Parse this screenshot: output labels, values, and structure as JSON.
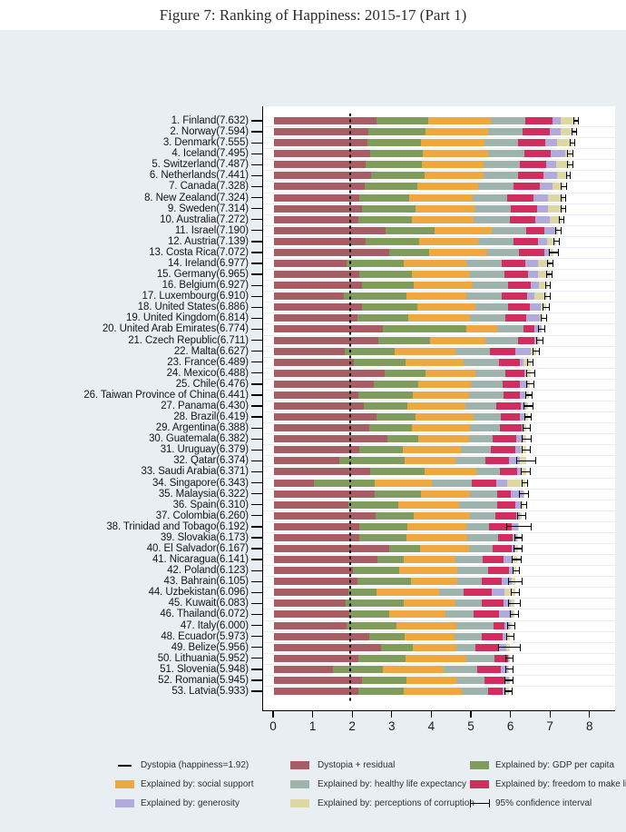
{
  "title": "Figure 7: Ranking of Happiness: 2015-17 (Part 1)",
  "colors": {
    "dystopia_residual": "#a85d65",
    "gdp": "#7f9c5c",
    "social": "#efa73f",
    "health": "#9eb3ab",
    "freedom": "#d22d5f",
    "generosity": "#b0abdc",
    "corruption": "#ddd8a3",
    "background": "#e9eef3",
    "plot_background": "#ffffff",
    "axis": "#000000"
  },
  "chart_data": {
    "type": "bar",
    "orientation": "horizontal-stacked",
    "title": "Figure 7: Ranking of Happiness: 2015-17 (Part 1)",
    "xlabel": "",
    "ylabel": "",
    "xlim": [
      0,
      8
    ],
    "x_tick_labels": [
      "0",
      "1",
      "2",
      "3",
      "4",
      "5",
      "6",
      "7",
      "8"
    ],
    "grid": false,
    "dystopia_line_value": 1.92,
    "segment_order": [
      "dystopia_residual",
      "gdp",
      "social",
      "health",
      "freedom",
      "generosity",
      "corruption"
    ],
    "segment_names": [
      "Dystopia + residual",
      "Explained by: GDP per capita",
      "Explained by: social support",
      "Explained by: healthy life expectancy",
      "Explained by: freedom to make life choices",
      "Explained by: generosity",
      "Explained by: perceptions of corruption"
    ],
    "rows": [
      {
        "rank": 1,
        "country": "Finland",
        "score": 7.632,
        "label": "1. Finland(7.632)",
        "v": [
          2.585,
          1.305,
          1.592,
          0.874,
          0.681,
          0.202,
          0.393
        ],
        "ci": 0.07
      },
      {
        "rank": 2,
        "country": "Norway",
        "score": 7.594,
        "label": "2. Norway(7.594)",
        "v": [
          2.383,
          1.456,
          1.582,
          0.861,
          0.686,
          0.286,
          0.34
        ],
        "ci": 0.07
      },
      {
        "rank": 3,
        "country": "Denmark",
        "score": 7.555,
        "label": "3. Denmark(7.555)",
        "v": [
          2.371,
          1.351,
          1.59,
          0.868,
          0.683,
          0.284,
          0.408
        ],
        "ci": 0.07
      },
      {
        "rank": 4,
        "country": "Iceland",
        "score": 7.495,
        "label": "4. Iceland(7.495)",
        "v": [
          2.426,
          1.343,
          1.644,
          0.914,
          0.677,
          0.353,
          0.138
        ],
        "ci": 0.08
      },
      {
        "rank": 5,
        "country": "Switzerland",
        "score": 7.487,
        "label": "5. Switzerland(7.487)",
        "v": [
          2.318,
          1.42,
          1.549,
          0.927,
          0.66,
          0.256,
          0.357
        ],
        "ci": 0.08
      },
      {
        "rank": 6,
        "country": "Netherlands",
        "score": 7.441,
        "label": "6. Netherlands(7.441)",
        "v": [
          2.448,
          1.361,
          1.488,
          0.878,
          0.638,
          0.333,
          0.295
        ],
        "ci": 0.06
      },
      {
        "rank": 7,
        "country": "Canada",
        "score": 7.328,
        "label": "7. Canada(7.328)",
        "v": [
          2.305,
          1.33,
          1.532,
          0.896,
          0.653,
          0.321,
          0.291
        ],
        "ci": 0.07
      },
      {
        "rank": 8,
        "country": "New Zealand",
        "score": 7.324,
        "label": "8. New Zealand(7.324)",
        "v": [
          2.156,
          1.268,
          1.601,
          0.876,
          0.669,
          0.365,
          0.389
        ],
        "ci": 0.07
      },
      {
        "rank": 9,
        "country": "Sweden",
        "score": 7.314,
        "label": "9. Sweden(7.314)",
        "v": [
          2.218,
          1.355,
          1.501,
          0.913,
          0.659,
          0.285,
          0.383
        ],
        "ci": 0.07
      },
      {
        "rank": 10,
        "country": "Australia",
        "score": 7.272,
        "label": "10. Australia(7.272)",
        "v": [
          2.139,
          1.34,
          1.573,
          0.91,
          0.647,
          0.361,
          0.302
        ],
        "ci": 0.07
      },
      {
        "rank": 11,
        "country": "Israel",
        "score": 7.19,
        "label": "11. Israel(7.190)",
        "v": [
          2.817,
          1.244,
          1.433,
          0.888,
          0.464,
          0.262,
          0.082
        ],
        "ci": 0.07
      },
      {
        "rank": 12,
        "country": "Austria",
        "score": 7.139,
        "label": "12. Austria(7.139)",
        "v": [
          2.32,
          1.341,
          1.504,
          0.891,
          0.617,
          0.242,
          0.224
        ],
        "ci": 0.08
      },
      {
        "rank": 13,
        "country": "Costa Rica",
        "score": 7.072,
        "label": "13. Costa Rica(7.072)",
        "v": [
          2.91,
          1.01,
          1.459,
          0.817,
          0.632,
          0.143,
          0.101
        ],
        "ci": 0.12
      },
      {
        "rank": 14,
        "country": "Ireland",
        "score": 6.977,
        "label": "14. Ireland(6.977)",
        "v": [
          1.843,
          1.448,
          1.583,
          0.876,
          0.614,
          0.307,
          0.306
        ],
        "ci": 0.08
      },
      {
        "rank": 15,
        "country": "Germany",
        "score": 6.965,
        "label": "15. Germany(6.965)",
        "v": [
          2.151,
          1.34,
          1.474,
          0.861,
          0.586,
          0.273,
          0.28
        ],
        "ci": 0.08
      },
      {
        "rank": 16,
        "country": "Belgium",
        "score": 6.927,
        "label": "16. Belgium(6.927)",
        "v": [
          2.215,
          1.324,
          1.483,
          0.894,
          0.583,
          0.188,
          0.24
        ],
        "ci": 0.07
      },
      {
        "rank": 17,
        "country": "Luxembourg",
        "score": 6.91,
        "label": "17. Luxembourg(6.910)",
        "v": [
          1.769,
          1.576,
          1.52,
          0.896,
          0.632,
          0.196,
          0.321
        ],
        "ci": 0.08
      },
      {
        "rank": 18,
        "country": "United States",
        "score": 6.886,
        "label": "18. United States(6.886)",
        "v": [
          2.227,
          1.398,
          1.471,
          0.819,
          0.547,
          0.291,
          0.133
        ],
        "ci": 0.09
      },
      {
        "rank": 19,
        "country": "United Kingdom",
        "score": 6.814,
        "label": "19. United Kingdom(6.814)",
        "v": [
          2.102,
          1.301,
          1.559,
          0.883,
          0.533,
          0.354,
          0.082
        ],
        "ci": 0.08
      },
      {
        "rank": 20,
        "country": "United Arab Emirates",
        "score": 6.774,
        "label": "20. United Arab Emirates(6.774)",
        "v": [
          2.762,
          2.096,
          0.776,
          0.67,
          0.284,
          0.186,
          0.0
        ],
        "ci": 0.09
      },
      {
        "rank": 21,
        "country": "Czech Republic",
        "score": 6.711,
        "label": "21. Czech Republic(6.711)",
        "v": [
          2.646,
          1.301,
          1.402,
          0.825,
          0.4,
          0.106,
          0.031
        ],
        "ci": 0.09
      },
      {
        "rank": 22,
        "country": "Malta",
        "score": 6.627,
        "label": "22. Malta(6.627)",
        "v": [
          1.785,
          1.27,
          1.525,
          0.884,
          0.645,
          0.376,
          0.142
        ],
        "ci": 0.09
      },
      {
        "rank": 23,
        "country": "France",
        "score": 6.489,
        "label": "23. France(6.489)",
        "v": [
          2.028,
          1.293,
          1.466,
          0.908,
          0.52,
          0.098,
          0.176
        ],
        "ci": 0.08
      },
      {
        "rank": 24,
        "country": "Mexico",
        "score": 6.488,
        "label": "24. Mexico(6.488)",
        "v": [
          2.794,
          1.038,
          1.252,
          0.761,
          0.479,
          0.069,
          0.095
        ],
        "ci": 0.12
      },
      {
        "rank": 25,
        "country": "Chile",
        "score": 6.476,
        "label": "25. Chile(6.476)",
        "v": [
          2.517,
          1.131,
          1.331,
          0.808,
          0.431,
          0.197,
          0.061
        ],
        "ci": 0.11
      },
      {
        "rank": 26,
        "country": "Taiwan Province of China",
        "score": 6.441,
        "label": "26. Taiwan Province of China(6.441)",
        "v": [
          2.136,
          1.365,
          1.436,
          0.857,
          0.418,
          0.151,
          0.078
        ],
        "ci": 0.09
      },
      {
        "rank": 27,
        "country": "Panama",
        "score": 6.43,
        "label": "27. Panama(6.430)",
        "v": [
          2.263,
          1.112,
          1.463,
          0.779,
          0.625,
          0.125,
          0.063
        ],
        "ci": 0.12
      },
      {
        "rank": 28,
        "country": "Brazil",
        "score": 6.419,
        "label": "28. Brazil(6.419)",
        "v": [
          2.593,
          0.986,
          1.474,
          0.675,
          0.493,
          0.11,
          0.088
        ],
        "ci": 0.1
      },
      {
        "rank": 29,
        "country": "Argentina",
        "score": 6.388,
        "label": "29. Argentina(6.388)",
        "v": [
          2.417,
          1.073,
          1.468,
          0.744,
          0.57,
          0.062,
          0.054
        ],
        "ci": 0.11
      },
      {
        "rank": 30,
        "country": "Guatemala",
        "score": 6.382,
        "label": "30. Guatemala(6.382)",
        "v": [
          2.871,
          0.781,
          1.268,
          0.608,
          0.604,
          0.179,
          0.071
        ],
        "ci": 0.13
      },
      {
        "rank": 31,
        "country": "Uruguay",
        "score": 6.379,
        "label": "31. Uruguay(6.379)",
        "v": [
          2.164,
          1.093,
          1.459,
          0.771,
          0.625,
          0.13,
          0.137
        ],
        "ci": 0.12
      },
      {
        "rank": 32,
        "country": "Qatar",
        "score": 6.374,
        "label": "32. Qatar(6.374)",
        "v": [
          1.647,
          1.649,
          1.303,
          0.748,
          0.604,
          0.256,
          0.167
        ],
        "ci": 0.25
      },
      {
        "rank": 33,
        "country": "Saudi Arabia",
        "score": 6.371,
        "label": "33. Saudi Arabia(6.371)",
        "v": [
          2.425,
          1.379,
          1.308,
          0.598,
          0.449,
          0.08,
          0.132
        ],
        "ci": 0.13
      },
      {
        "rank": 34,
        "country": "Singapore",
        "score": 6.343,
        "label": "34. Singapore(6.343)",
        "v": [
          1.006,
          1.529,
          1.451,
          1.008,
          0.631,
          0.261,
          0.457
        ],
        "ci": 0.09
      },
      {
        "rank": 35,
        "country": "Malaysia",
        "score": 6.322,
        "label": "35. Malaysia(6.322)",
        "v": [
          2.544,
          1.161,
          1.258,
          0.669,
          0.356,
          0.31,
          0.024
        ],
        "ci": 0.12
      },
      {
        "rank": 36,
        "country": "Spain",
        "score": 6.31,
        "label": "36. Spain(6.310)",
        "v": [
          1.891,
          1.251,
          1.538,
          0.965,
          0.449,
          0.142,
          0.074
        ],
        "ci": 0.08
      },
      {
        "rank": 37,
        "country": "Colombia",
        "score": 6.26,
        "label": "37. Colombia(6.260)",
        "v": [
          2.562,
          0.96,
          1.439,
          0.635,
          0.531,
          0.099,
          0.034
        ],
        "ci": 0.11
      },
      {
        "rank": 38,
        "country": "Trinidad and Tobago",
        "score": 6.192,
        "label": "38. Trinidad and Tobago(6.192)",
        "v": [
          2.148,
          1.223,
          1.492,
          0.564,
          0.575,
          0.171,
          0.019
        ],
        "ci": 0.33
      },
      {
        "rank": 39,
        "country": "Slovakia",
        "score": 6.173,
        "label": "39. Slovakia(6.173)",
        "v": [
          2.149,
          1.21,
          1.537,
          0.776,
          0.354,
          0.123,
          0.024
        ],
        "ci": 0.1
      },
      {
        "rank": 40,
        "country": "El Salvador",
        "score": 6.167,
        "label": "40. El Salvador(6.167)",
        "v": [
          2.906,
          0.794,
          1.242,
          0.596,
          0.477,
          0.088,
          0.064
        ],
        "ci": 0.12
      },
      {
        "rank": 41,
        "country": "Nicaragua",
        "score": 6.141,
        "label": "41. Nicaragua(6.141)",
        "v": [
          2.611,
          0.668,
          1.3,
          0.695,
          0.531,
          0.208,
          0.128
        ],
        "ci": 0.13
      },
      {
        "rank": 42,
        "country": "Poland",
        "score": 6.123,
        "label": "42. Poland(6.123)",
        "v": [
          2.0,
          1.176,
          1.448,
          0.781,
          0.546,
          0.108,
          0.064
        ],
        "ci": 0.1
      },
      {
        "rank": 43,
        "country": "Bahrain",
        "score": 6.105,
        "label": "43. Bahrain(6.105)",
        "v": [
          2.106,
          1.366,
          1.171,
          0.604,
          0.506,
          0.254,
          0.098
        ],
        "ci": 0.18
      },
      {
        "rank": 44,
        "country": "Uzbekistan",
        "score": 6.096,
        "label": "44. Uzbekistan(6.096)",
        "v": [
          1.877,
          0.719,
          1.584,
          0.605,
          0.724,
          0.328,
          0.259
        ],
        "ci": 0.11
      },
      {
        "rank": 45,
        "country": "Kuwait",
        "score": 6.083,
        "label": "45. Kuwait(6.083)",
        "v": [
          1.806,
          1.474,
          1.301,
          0.675,
          0.554,
          0.167,
          0.106
        ],
        "ci": 0.16
      },
      {
        "rank": 46,
        "country": "Thailand",
        "score": 6.072,
        "label": "46. Thailand(6.072)",
        "v": [
          1.902,
          1.016,
          1.417,
          0.707,
          0.637,
          0.364,
          0.029
        ],
        "ci": 0.11
      },
      {
        "rank": 47,
        "country": "Italy",
        "score": 6.0,
        "label": "47. Italy(6.000)",
        "v": [
          1.843,
          1.264,
          1.501,
          0.946,
          0.281,
          0.137,
          0.028
        ],
        "ci": 0.1
      },
      {
        "rank": 48,
        "country": "Ecuador",
        "score": 5.973,
        "label": "48. Ecuador(5.973)",
        "v": [
          2.398,
          0.896,
          1.267,
          0.684,
          0.545,
          0.104,
          0.079
        ],
        "ci": 0.11
      },
      {
        "rank": 49,
        "country": "Belize",
        "score": 5.956,
        "label": "49. Belize(5.956)",
        "v": [
          2.709,
          0.807,
          1.101,
          0.474,
          0.593,
          0.183,
          0.089
        ],
        "ci": 0.28
      },
      {
        "rank": 50,
        "country": "Lithuania",
        "score": 5.952,
        "label": "50. Lithuania(5.952)",
        "v": [
          2.13,
          1.197,
          1.527,
          0.716,
          0.35,
          0.026,
          0.006
        ],
        "ci": 0.1
      },
      {
        "rank": 51,
        "country": "Slovenia",
        "score": 5.948,
        "label": "51. Slovenia(5.948)",
        "v": [
          1.5,
          1.258,
          1.523,
          0.857,
          0.604,
          0.172,
          0.034
        ],
        "ci": 0.1
      },
      {
        "rank": 52,
        "country": "Romania",
        "score": 5.945,
        "label": "52. Romania(5.945)",
        "v": [
          2.236,
          1.107,
          1.26,
          0.722,
          0.503,
          0.111,
          0.006
        ],
        "ci": 0.12
      },
      {
        "rank": 53,
        "country": "Latvia",
        "score": 5.933,
        "label": "53. Latvia(5.933)",
        "v": [
          2.138,
          1.148,
          1.454,
          0.672,
          0.363,
          0.092,
          0.066
        ],
        "ci": 0.1
      }
    ]
  },
  "legend": {
    "items": [
      {
        "marker": "line",
        "label": "Dystopia (happiness=1.92)",
        "col": 0,
        "row": 0
      },
      {
        "marker": "swatch",
        "color": "dystopia_residual",
        "label": "Dystopia + residual",
        "col": 1,
        "row": 0
      },
      {
        "marker": "swatch",
        "color": "gdp",
        "label": "Explained by: GDP per capita",
        "col": 2,
        "row": 0
      },
      {
        "marker": "swatch",
        "color": "social",
        "label": "Explained by: social support",
        "col": 0,
        "row": 1
      },
      {
        "marker": "swatch",
        "color": "health",
        "label": "Explained by: healthy life expectancy",
        "col": 1,
        "row": 1
      },
      {
        "marker": "swatch",
        "color": "freedom",
        "label": "Explained by: freedom to make life choices",
        "col": 2,
        "row": 1
      },
      {
        "marker": "swatch",
        "color": "generosity",
        "label": "Explained by: generosity",
        "col": 0,
        "row": 2
      },
      {
        "marker": "swatch",
        "color": "corruption",
        "label": "Explained by: perceptions of corruption",
        "col": 1,
        "row": 2
      },
      {
        "marker": "errorbar",
        "label": "95% confidence interval",
        "col": 2,
        "row": 2
      }
    ]
  }
}
